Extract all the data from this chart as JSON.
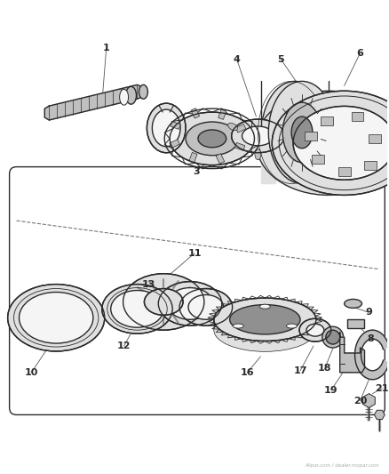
{
  "bg_color": "#ffffff",
  "lc": "#2a2a2a",
  "fl": "#e0e0e0",
  "fm": "#c0c0c0",
  "fd": "#909090",
  "fw": "#f5f5f5",
  "fig_width": 4.39,
  "fig_height": 5.33,
  "dpi": 100,
  "watermark": "Allpar.com / dealer.mopar.com"
}
